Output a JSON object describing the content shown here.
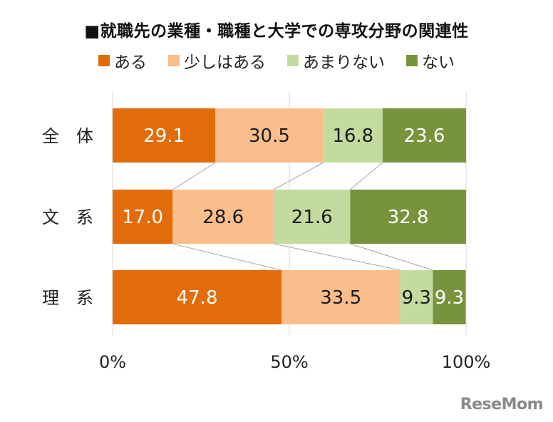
{
  "chart_data": {
    "type": "bar",
    "orientation": "horizontal",
    "stacked": true,
    "title": "■就職先の業種・職種と大学での専攻分野の関連性",
    "categories": [
      "全　体",
      "文　系",
      "理　系"
    ],
    "series": [
      {
        "name": "ある",
        "color": "#E36C0A",
        "values": [
          29.1,
          17.0,
          47.8
        ],
        "labels": [
          "29.1",
          "17.0",
          "47.8"
        ]
      },
      {
        "name": "少しはある",
        "color": "#F9BE8C",
        "values": [
          30.5,
          28.6,
          33.5
        ],
        "labels": [
          "30.5",
          "28.6",
          "33.5"
        ]
      },
      {
        "name": "あまりない",
        "color": "#C4DBA0",
        "values": [
          16.8,
          21.6,
          9.3
        ],
        "labels": [
          "16.8",
          "21.6",
          "9.3"
        ]
      },
      {
        "name": "ない",
        "color": "#77933C",
        "values": [
          23.6,
          32.8,
          9.3
        ],
        "labels": [
          "23.6",
          "32.8",
          "9.3"
        ]
      }
    ],
    "xlim": [
      0,
      100
    ],
    "xticks": [
      "0%",
      "50%",
      "100%"
    ],
    "legend_position": "top",
    "grid": "vertical",
    "series_lines": true
  },
  "watermark": "ReseMom"
}
